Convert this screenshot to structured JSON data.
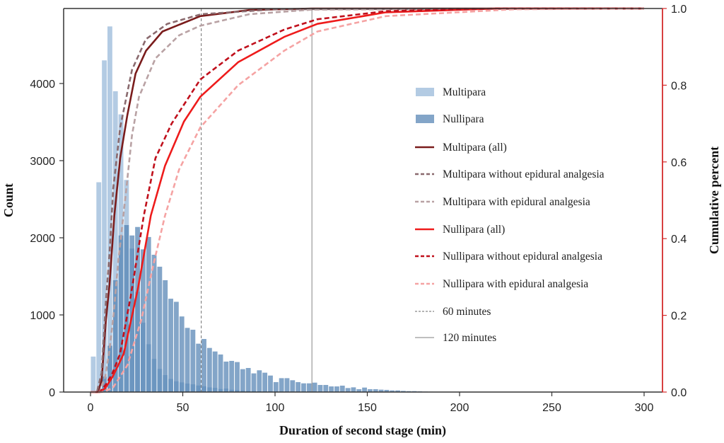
{
  "chart_data": {
    "type": "bar+line",
    "xlabel": "Duration of second stage (min)",
    "ylabel": "Count",
    "y2label": "Cumulative percent",
    "xlim": [
      -15,
      310
    ],
    "ylim": [
      0,
      4960
    ],
    "y2lim": [
      0,
      1.0
    ],
    "xticks": [
      "0",
      "50",
      "100",
      "150",
      "200",
      "250",
      "300"
    ],
    "xtick_values": [
      0,
      50,
      100,
      150,
      200,
      250,
      300
    ],
    "yticks": [
      "0",
      "1000",
      "2000",
      "3000",
      "4000"
    ],
    "ytick_values": [
      0,
      1000,
      2000,
      3000,
      4000
    ],
    "y2ticks": [
      "0.0",
      "0.2",
      "0.4",
      "0.6",
      "0.8",
      "1.0"
    ],
    "y2tick_values": [
      0,
      0.2,
      0.4,
      0.6,
      0.8,
      1.0
    ],
    "bin_width": 3,
    "histograms": [
      {
        "name": "Multipara",
        "color": "#b3cbe3",
        "values": [
          460,
          2720,
          4300,
          4740,
          3900,
          3600,
          2750,
          1860,
          1300,
          900,
          620,
          430,
          300,
          220,
          170,
          140,
          125,
          110,
          100,
          85,
          75,
          60,
          55,
          40,
          45,
          30,
          25,
          20,
          15,
          15,
          10,
          10,
          8,
          8,
          6,
          5,
          5,
          4,
          3,
          3,
          2,
          2,
          2,
          1,
          1,
          1,
          1,
          1
        ]
      },
      {
        "name": "Nullipara",
        "color": "#4f7fb0",
        "values": [
          0,
          30,
          200,
          600,
          1450,
          2030,
          2165,
          2030,
          2140,
          1850,
          2010,
          1780,
          1625,
          1450,
          1210,
          1170,
          980,
          832,
          808,
          627,
          688,
          572,
          526,
          487,
          395,
          404,
          389,
          297,
          312,
          242,
          282,
          251,
          214,
          129,
          180,
          180,
          153,
          129,
          113,
          113,
          122,
          92,
          92,
          73,
          73,
          83,
          52,
          61,
          37,
          58,
          37,
          37,
          31,
          28,
          21,
          21,
          15,
          12,
          12,
          9,
          6,
          5,
          4,
          3,
          2,
          2,
          1,
          1
        ]
      }
    ],
    "series": [
      {
        "name": "Multipara (all)",
        "color": "#7a1c1c",
        "dash": "",
        "x": [
          0,
          4,
          6,
          8.4,
          10.3,
          12.9,
          16.1,
          19.9,
          24.4,
          30.1,
          39,
          59.5,
          86,
          120,
          200,
          300
        ],
        "y": [
          0,
          0,
          0.03,
          0.19,
          0.28,
          0.46,
          0.61,
          0.72,
          0.83,
          0.89,
          0.94,
          0.98,
          0.996,
          1,
          1,
          1
        ]
      },
      {
        "name": "Multipara without epidural analgesia",
        "color": "#8a6a6e",
        "dash": "7,4",
        "x": [
          0,
          3.5,
          6,
          8.4,
          10.3,
          12.3,
          16.1,
          22.5,
          30,
          41.6,
          60,
          100,
          300
        ],
        "y": [
          0,
          0,
          0.05,
          0.24,
          0.36,
          0.53,
          0.69,
          0.84,
          0.92,
          0.96,
          0.985,
          0.998,
          1
        ]
      },
      {
        "name": "Multipara with epidural analgesia",
        "color": "#b9a2a4",
        "dash": "7,4",
        "x": [
          0,
          5,
          8,
          10,
          12.5,
          15,
          19.2,
          22.5,
          26.3,
          35.2,
          48,
          59.5,
          86,
          120,
          300
        ],
        "y": [
          0,
          0,
          0.04,
          0.1,
          0.2,
          0.34,
          0.52,
          0.67,
          0.77,
          0.87,
          0.93,
          0.955,
          0.985,
          0.997,
          1
        ]
      },
      {
        "name": "Nullipara (all)",
        "color": "#ee1b1b",
        "dash": "",
        "x": [
          0,
          5,
          8,
          12,
          18,
          25.7,
          32.7,
          40.4,
          50.6,
          59.5,
          80,
          105,
          123,
          160,
          220,
          300
        ],
        "y": [
          0,
          0,
          0.01,
          0.04,
          0.1,
          0.27,
          0.46,
          0.59,
          0.705,
          0.77,
          0.86,
          0.926,
          0.96,
          0.99,
          1,
          1
        ]
      },
      {
        "name": "Nullipara without epidural analgesia",
        "color": "#c0101c",
        "dash": "7,4",
        "x": [
          0,
          5,
          8.4,
          12,
          16,
          21.8,
          28.9,
          35.2,
          44,
          59.5,
          80,
          105,
          123,
          160,
          220,
          300
        ],
        "y": [
          0,
          0,
          0.02,
          0.05,
          0.1,
          0.25,
          0.46,
          0.61,
          0.7,
          0.815,
          0.89,
          0.945,
          0.972,
          0.993,
          1,
          1
        ]
      },
      {
        "name": "Nullipara with epidural analgesia",
        "color": "#f5a3a3",
        "dash": "7,4",
        "x": [
          0,
          6,
          12,
          20,
          27.6,
          34,
          40.4,
          48,
          59.5,
          80,
          105,
          123,
          160,
          230,
          300
        ],
        "y": [
          0,
          0,
          0.01,
          0.07,
          0.19,
          0.33,
          0.46,
          0.58,
          0.69,
          0.8,
          0.89,
          0.94,
          0.98,
          0.998,
          1
        ]
      }
    ],
    "reference_lines": [
      {
        "name": "60 minutes",
        "x": 60,
        "color": "#888888",
        "dash": "4,3"
      },
      {
        "name": "120 minutes",
        "x": 120,
        "color": "#999999",
        "dash": ""
      }
    ],
    "legend_position": "center-right",
    "legend": [
      "Multipara",
      "Nullipara",
      "Multipara (all)",
      "Multipara without epidural analgesia",
      "Multipara with epidural analgesia",
      "Nullipara (all)",
      "Nullipara without epidural analgesia",
      "Nullipara with epidural analgesia",
      "60 minutes",
      "120 minutes"
    ],
    "right_axis_color": "#d42a2a"
  }
}
